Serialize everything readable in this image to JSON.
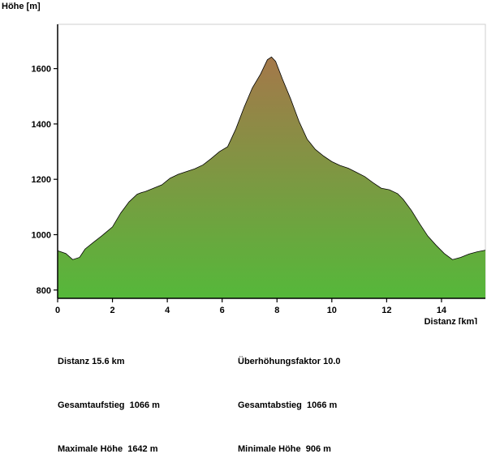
{
  "chart_data": {
    "type": "area",
    "title": "",
    "xlabel": "Distanz [km]",
    "ylabel": "Höhe [m]",
    "xlim": [
      0,
      15.6
    ],
    "ylim": [
      770,
      1760
    ],
    "x_ticks": [
      0,
      2,
      4,
      6,
      8,
      10,
      12,
      14
    ],
    "y_ticks": [
      800,
      1000,
      1200,
      1400,
      1600
    ],
    "grid": false,
    "series": [
      {
        "x": [
          0,
          0.3,
          0.55,
          0.8,
          1.0,
          1.3,
          1.6,
          2.0,
          2.3,
          2.6,
          2.9,
          3.05,
          3.2,
          3.5,
          3.8,
          4.1,
          4.4,
          4.7,
          5.0,
          5.3,
          5.6,
          5.9,
          6.2,
          6.5,
          6.8,
          7.1,
          7.4,
          7.65,
          7.8,
          7.95,
          8.2,
          8.5,
          8.8,
          9.1,
          9.4,
          9.7,
          10.0,
          10.3,
          10.6,
          10.9,
          11.2,
          11.5,
          11.8,
          12.1,
          12.4,
          12.6,
          12.9,
          13.2,
          13.5,
          13.8,
          14.1,
          14.4,
          14.7,
          15.0,
          15.3,
          15.6
        ],
        "y": [
          942,
          932,
          910,
          918,
          948,
          972,
          995,
          1028,
          1078,
          1118,
          1146,
          1152,
          1156,
          1168,
          1180,
          1204,
          1218,
          1228,
          1238,
          1252,
          1275,
          1300,
          1318,
          1382,
          1460,
          1530,
          1580,
          1632,
          1642,
          1626,
          1562,
          1490,
          1410,
          1345,
          1308,
          1284,
          1264,
          1250,
          1240,
          1225,
          1210,
          1188,
          1168,
          1162,
          1148,
          1128,
          1088,
          1040,
          995,
          962,
          932,
          910,
          918,
          930,
          938,
          944
        ]
      }
    ],
    "fill_colors": {
      "top": "#a4784a",
      "bottom": "#55b83a"
    },
    "outline_color": "#000000"
  },
  "stats": {
    "distance": "Distanz 15.6 km",
    "exaggeration": "Überhöhungsfaktor 10.0",
    "ascent": "Gesamtaufstieg  1066 m",
    "descent": "Gesamtabstieg  1066 m",
    "max_height": "Maximale Höhe  1642 m",
    "min_height": "Minimale Höhe  906 m"
  }
}
